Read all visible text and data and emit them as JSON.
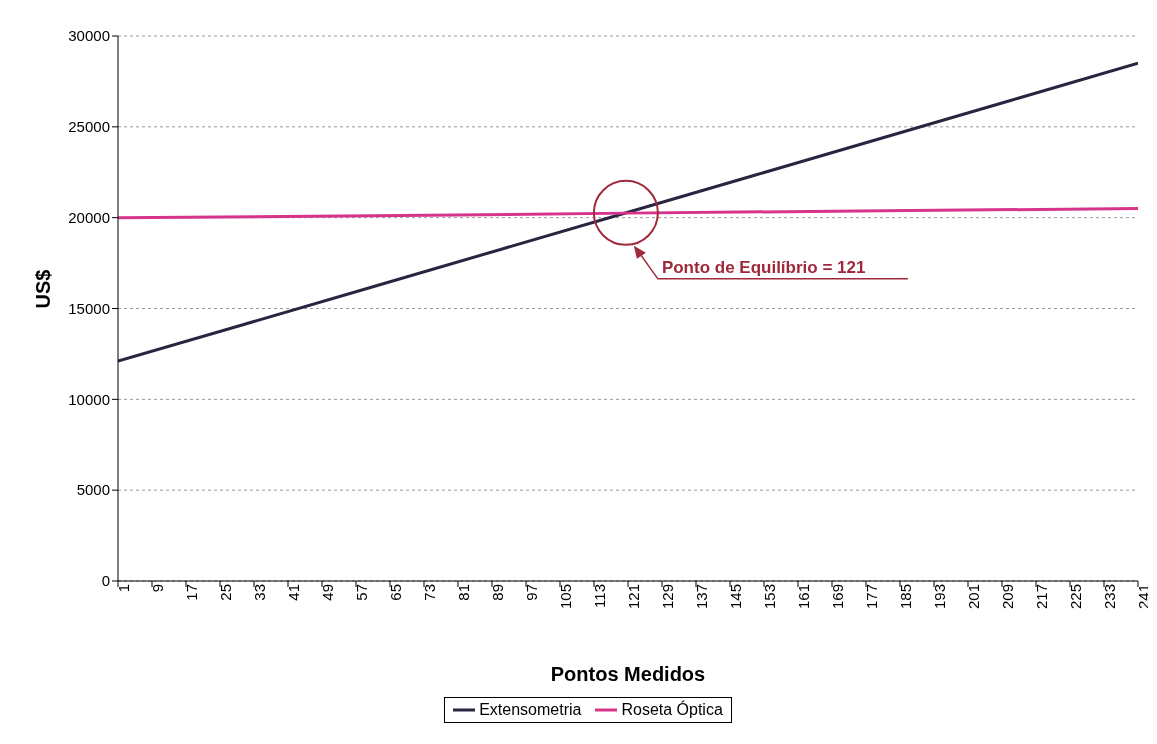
{
  "chart_data": {
    "type": "line",
    "xlabel": "Pontos Medidos",
    "ylabel": "US$",
    "xlim": [
      1,
      241
    ],
    "xticks": [
      1,
      9,
      17,
      25,
      33,
      41,
      49,
      57,
      65,
      73,
      81,
      89,
      97,
      105,
      113,
      121,
      129,
      137,
      145,
      153,
      161,
      169,
      177,
      185,
      193,
      201,
      209,
      217,
      225,
      233,
      241
    ],
    "ylim": [
      0,
      30000
    ],
    "yticks": [
      0,
      5000,
      10000,
      15000,
      20000,
      25000,
      30000
    ],
    "grid": "y",
    "legend": "bottom",
    "marker": "none",
    "line_style": "solid",
    "series": [
      {
        "name": "Extensometria",
        "color": "#2a2440",
        "x": [
          1,
          31,
          61,
          91,
          121,
          151,
          181,
          211,
          241
        ],
        "values": [
          12100,
          14150,
          16200,
          18250,
          20300,
          22350,
          24400,
          26450,
          28500
        ]
      },
      {
        "name": "Roseta Óptica",
        "color": "#d6338a",
        "x": [
          1,
          61,
          121,
          181,
          241
        ],
        "values": [
          20000,
          20100,
          20250,
          20380,
          20500
        ]
      }
    ],
    "annotations": [
      "Ponto de Equilíbrio = 121"
    ]
  }
}
